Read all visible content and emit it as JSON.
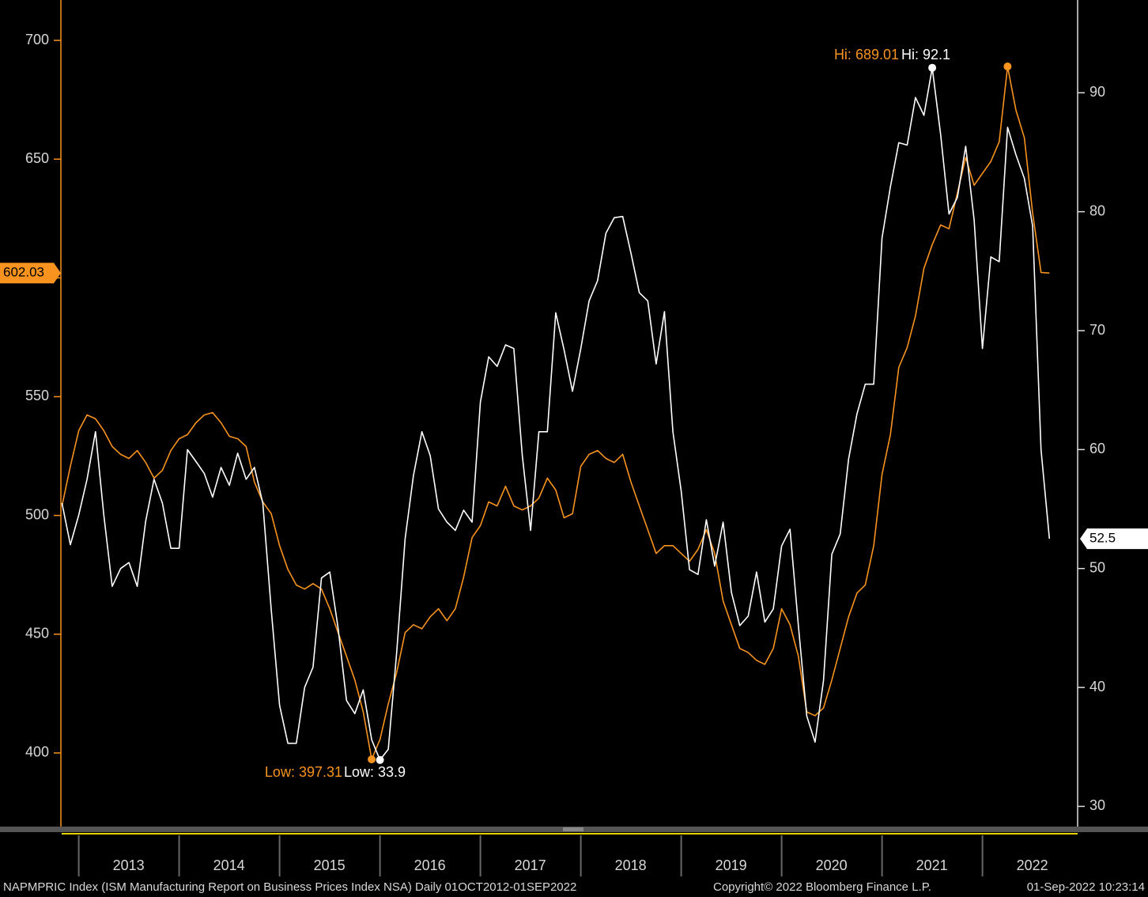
{
  "chart_data": {
    "type": "line",
    "x": [
      2012.833,
      2012.917,
      2013.0,
      2013.083,
      2013.167,
      2013.25,
      2013.333,
      2013.417,
      2013.5,
      2013.583,
      2013.667,
      2013.75,
      2013.833,
      2013.917,
      2014.0,
      2014.083,
      2014.167,
      2014.25,
      2014.333,
      2014.417,
      2014.5,
      2014.583,
      2014.667,
      2014.75,
      2014.833,
      2014.917,
      2015.0,
      2015.083,
      2015.167,
      2015.25,
      2015.333,
      2015.417,
      2015.5,
      2015.583,
      2015.667,
      2015.75,
      2015.833,
      2015.917,
      2016.0,
      2016.083,
      2016.167,
      2016.25,
      2016.333,
      2016.417,
      2016.5,
      2016.583,
      2016.667,
      2016.75,
      2016.833,
      2016.917,
      2017.0,
      2017.083,
      2017.167,
      2017.25,
      2017.333,
      2017.417,
      2017.5,
      2017.583,
      2017.667,
      2017.75,
      2017.833,
      2017.917,
      2018.0,
      2018.083,
      2018.167,
      2018.25,
      2018.333,
      2018.417,
      2018.5,
      2018.583,
      2018.667,
      2018.75,
      2018.833,
      2018.917,
      2019.0,
      2019.083,
      2019.167,
      2019.25,
      2019.333,
      2019.417,
      2019.5,
      2019.583,
      2019.667,
      2019.75,
      2019.833,
      2019.917,
      2020.0,
      2020.083,
      2020.167,
      2020.25,
      2020.333,
      2020.417,
      2020.5,
      2020.583,
      2020.667,
      2020.75,
      2020.833,
      2020.917,
      2021.0,
      2021.083,
      2021.167,
      2021.25,
      2021.333,
      2021.417,
      2021.5,
      2021.583,
      2021.667,
      2021.75,
      2021.833,
      2021.917,
      2022.0,
      2022.083,
      2022.167,
      2022.25,
      2022.333,
      2022.417,
      2022.5,
      2022.583,
      2022.667
    ],
    "series": [
      {
        "color": "#f7931e",
        "axis": "y",
        "values": [
          504,
          520.7,
          535.7,
          542.3,
          540.7,
          535.7,
          529,
          525.7,
          524,
          527.3,
          522.3,
          515.7,
          519,
          527.3,
          532.3,
          534,
          539,
          542.3,
          543.3,
          539,
          533.3,
          532.3,
          529,
          514,
          505.7,
          500.7,
          487.3,
          477.3,
          470.7,
          469,
          471.3,
          469,
          460.7,
          450.7,
          440.7,
          430.7,
          417.3,
          397.31,
          405.7,
          420.7,
          434,
          450.7,
          454,
          452.3,
          457.3,
          460.7,
          455.7,
          460.7,
          474,
          490.7,
          495.7,
          505.7,
          504,
          512.3,
          504,
          502.3,
          504,
          507.3,
          515.7,
          510.7,
          499,
          500.7,
          520.7,
          525.7,
          527.3,
          524,
          522.3,
          525.7,
          514,
          504,
          494,
          484,
          487.3,
          487.3,
          484,
          480.7,
          485.7,
          494,
          484,
          464,
          454,
          444,
          442.3,
          439,
          437.3,
          444,
          460.7,
          454,
          440.7,
          417.3,
          415.7,
          419,
          430.7,
          444,
          457.3,
          467.3,
          470.7,
          487.3,
          517.3,
          534,
          562.3,
          570.7,
          584,
          604,
          614,
          622.3,
          620.7,
          635.7,
          650.7,
          639,
          644,
          649,
          657.3,
          689.01,
          670.7,
          659,
          627.3,
          602.3,
          602.03
        ]
      },
      {
        "name": "NAPMPRIC Index",
        "color": "#ffffff",
        "axis": "y2",
        "values": [
          55.5,
          52,
          54.5,
          57.5,
          61.5,
          54.5,
          48.5,
          50,
          50.5,
          48.5,
          54,
          57.5,
          55.5,
          51.7,
          51.7,
          60,
          59,
          58,
          56,
          58.5,
          57,
          59.7,
          57.5,
          58.5,
          55.5,
          46.5,
          38.5,
          35.3,
          35.3,
          40,
          41.7,
          49.2,
          49.7,
          45,
          38.9,
          37.8,
          39.8,
          35.6,
          33.9,
          34.8,
          43,
          52.5,
          57.8,
          61.5,
          59.5,
          55,
          53.9,
          53.2,
          54.9,
          53.9,
          64,
          67.8,
          67,
          68.8,
          68.5,
          59.5,
          53.2,
          61.5,
          61.5,
          71.5,
          68.4,
          64.9,
          68.5,
          72.5,
          74.2,
          78.2,
          79.5,
          79.6,
          76.5,
          73.2,
          72.5,
          67.2,
          71.6,
          61.5,
          56.5,
          49.9,
          49.5,
          54.1,
          50.2,
          53.9,
          48,
          45.2,
          46,
          49.7,
          45.5,
          46.6,
          51.9,
          53.3,
          45.2,
          37.6,
          35.4,
          40.6,
          51.2,
          52.9,
          59.2,
          63,
          65.5,
          65.5,
          77.8,
          82.1,
          85.8,
          85.6,
          89.6,
          88.1,
          92.1,
          86.5,
          79.8,
          81.2,
          85.5,
          79.3,
          68.5,
          76.2,
          75.8,
          87.1,
          84.8,
          82.8,
          78.8,
          60,
          52.5
        ]
      }
    ],
    "xlim": [
      2012.83,
      2022.94
    ],
    "xticks": [
      2013,
      2014,
      2015,
      2016,
      2017,
      2018,
      2019,
      2020,
      2021,
      2022
    ],
    "ylim": [
      369,
      717
    ],
    "yticks": [
      400,
      450,
      500,
      550,
      600,
      650,
      700
    ],
    "y2lim": [
      28.3,
      97.8
    ],
    "y2ticks": [
      30,
      40,
      50,
      60,
      70,
      80,
      90
    ],
    "annotations": [
      "Hi: 689.01",
      "Hi: 92.1",
      "Low: 397.31",
      "Low: 33.9"
    ],
    "footer": [
      "NAPMPRIC Index (ISM Manufacturing Report on Business Prices Index NSA)  Daily 01OCT2012-01SEP2022",
      "Copyright© 2022 Bloomberg Finance L.P.",
      "01-Sep-2022 10:23:14"
    ]
  }
}
